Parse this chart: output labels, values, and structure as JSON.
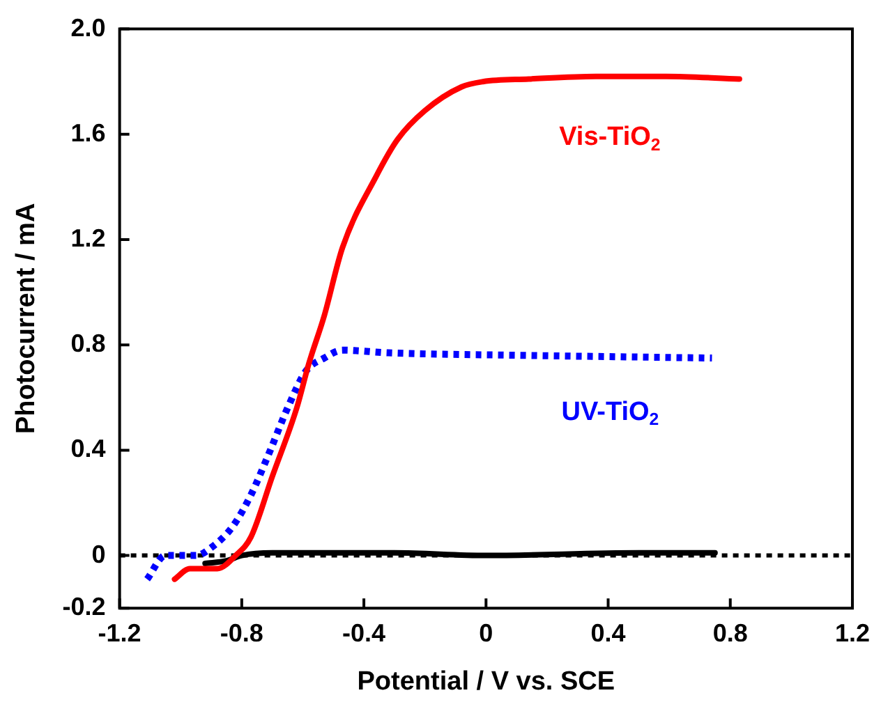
{
  "chart_data": {
    "type": "line",
    "xlabel": "Potential / V vs. SCE",
    "ylabel": "Photocurrent / mA",
    "xlim": [
      -1.2,
      1.2
    ],
    "xticks": [
      -1.2,
      -0.8,
      -0.4,
      0,
      0.4,
      0.8,
      1.2
    ],
    "ylim": [
      -0.2,
      2.0
    ],
    "yticks": [
      -0.2,
      0,
      {
        "value": 0.4,
        "label": "0.4"
      },
      {
        "value": 0.8,
        "label": "0.8"
      },
      {
        "value": 1.2,
        "label": "1.2"
      },
      {
        "value": 1.6,
        "label": "1.6"
      },
      {
        "value": 2,
        "label": "2.0"
      }
    ],
    "grid": false,
    "legend": false,
    "marker": "none",
    "series": [
      {
        "name": "Vis-TiO$_{2}$",
        "color": "#ff0000",
        "line_style": "solid",
        "x": [
          -1.02,
          -0.97,
          -0.88,
          -0.82,
          -0.77,
          -0.7,
          -0.62,
          -0.58,
          -0.53,
          -0.47,
          -0.36,
          -0.29,
          -0.2,
          -0.08,
          -0.01,
          0.14,
          0.36,
          0.59,
          0.83
        ],
        "values": [
          -0.09,
          -0.05,
          -0.05,
          0,
          0.07,
          0.3,
          0.56,
          0.73,
          0.91,
          1.17,
          1.44,
          1.58,
          1.69,
          1.78,
          1.8,
          1.81,
          1.82,
          1.82,
          1.81
        ]
      },
      {
        "name": "UV-TiO$_{2}$",
        "color": "#0000ff",
        "line_style": "dotted",
        "x": [
          -1.11,
          -1.05,
          -0.95,
          -0.9,
          -0.83,
          -0.77,
          -0.71,
          -0.65,
          -0.59,
          -0.53,
          -0.47,
          -0.32,
          0.14,
          0.74
        ],
        "values": [
          -0.09,
          0,
          0,
          0.03,
          0.11,
          0.23,
          0.39,
          0.56,
          0.7,
          0.75,
          0.78,
          0.77,
          0.76,
          0.75
        ]
      },
      {
        "color": "#000000",
        "line_style": "solid",
        "x": [
          -0.92,
          -0.85,
          -0.8,
          -0.7,
          -0.3,
          0,
          0.5,
          0.75
        ],
        "values": [
          -0.03,
          -0.02,
          0,
          0.01,
          0.01,
          0,
          0.01,
          0.01
        ]
      }
    ],
    "ref_lines": [
      {
        "axis": "y",
        "value": 0,
        "color": "#000000",
        "line_style": "dotted"
      }
    ]
  }
}
